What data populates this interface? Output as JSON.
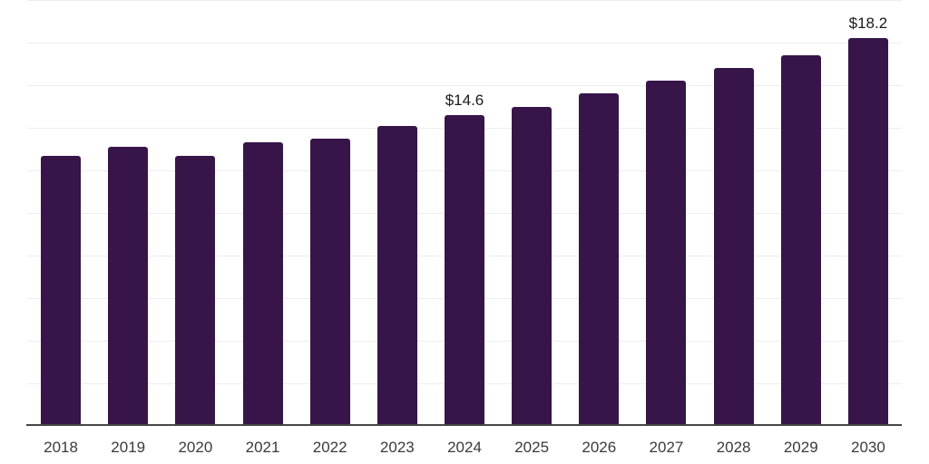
{
  "chart_data": {
    "type": "bar",
    "title": "",
    "xlabel": "",
    "ylabel": "",
    "categories": [
      "2018",
      "2019",
      "2020",
      "2021",
      "2022",
      "2023",
      "2024",
      "2025",
      "2026",
      "2027",
      "2028",
      "2029",
      "2030"
    ],
    "values": [
      12.7,
      13.1,
      12.7,
      13.3,
      13.5,
      14.1,
      14.6,
      15.0,
      15.6,
      16.2,
      16.8,
      17.4,
      18.2
    ],
    "point_labels": [
      "",
      "",
      "",
      "",
      "",
      "",
      "$14.6",
      "",
      "",
      "",
      "",
      "",
      "$18.2"
    ],
    "ylim": [
      0,
      20
    ],
    "gridline_step": 2,
    "grid": "horizontal-only",
    "legend": "none",
    "y_tick_labels_shown": false,
    "colors": {
      "bar": "#371549",
      "gridline": "#ededed",
      "axis_line": "#454545",
      "value_label": "#1a1a1a",
      "tick_label": "#3a3a3a",
      "background": "#ffffff"
    }
  }
}
